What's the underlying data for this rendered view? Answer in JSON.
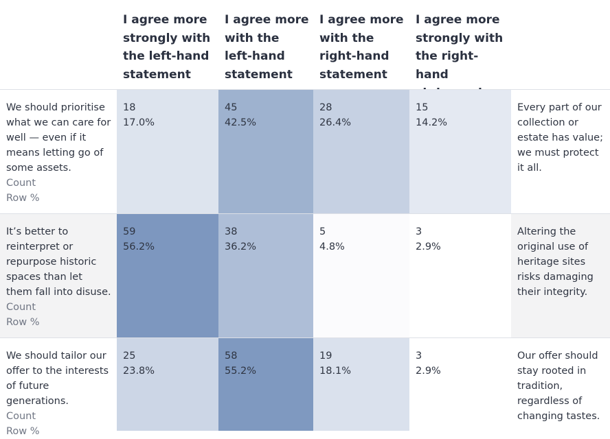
{
  "columns": [
    "I agree more strongly with the left-hand statement",
    "I agree more with the left-hand statement",
    "I agree more with the right-hand statement",
    "I agree more strongly with the right-hand statement"
  ],
  "row_labels": {
    "count": "Count",
    "row_pct": "Row %"
  },
  "rows": [
    {
      "left": "We should prioritise what we can care for well — even if it means letting go of some assets.",
      "right": "Every part of our collection or estate has value; we must protect it all.",
      "counts": [
        "18",
        "45",
        "28",
        "15"
      ],
      "pcts": [
        "17.0%",
        "42.5%",
        "26.4%",
        "14.2%"
      ]
    },
    {
      "left": "It’s better to reinterpret or repurpose historic spaces than let them fall into disuse.",
      "right": "Altering the original use of heritage sites risks damaging their integrity.",
      "counts": [
        "59",
        "38",
        "5",
        "3"
      ],
      "pcts": [
        "56.2%",
        "36.2%",
        "4.8%",
        "2.9%"
      ]
    },
    {
      "left": "We should tailor our offer to the interests of future generations.",
      "right": "Our offer should stay rooted in tradition, regardless of changing tastes.",
      "counts": [
        "25",
        "58",
        "19",
        "3"
      ],
      "pcts": [
        "23.8%",
        "55.2%",
        "18.1%",
        "2.9%"
      ]
    }
  ],
  "colors": {
    "scale_max": "#7d97bf",
    "scale_min": "#ffffff",
    "stripe": "#f3f3f4",
    "grid": "#dde0e6",
    "text": "#2f3542"
  },
  "chart_data": {
    "type": "heatmap",
    "x": [
      "I agree more strongly with the left-hand statement",
      "I agree more with the left-hand statement",
      "I agree more with the right-hand statement",
      "I agree more strongly with the right-hand statement"
    ],
    "y": [
      "We should prioritise what we can care for well — even if it means letting go of some assets. / Every part of our collection or estate has value; we must protect it all.",
      "It’s better to reinterpret or repurpose historic spaces than let them fall into disuse. / Altering the original use of heritage sites risks damaging their integrity.",
      "We should tailor our offer to the interests of future generations. / Our offer should stay rooted in tradition, regardless of changing tastes."
    ],
    "counts": [
      [
        18,
        45,
        28,
        15
      ],
      [
        59,
        38,
        5,
        3
      ],
      [
        25,
        58,
        19,
        3
      ]
    ],
    "row_pct": [
      [
        17.0,
        42.5,
        26.4,
        14.2
      ],
      [
        56.2,
        36.2,
        4.8,
        2.9
      ],
      [
        23.8,
        55.2,
        18.1,
        2.9
      ]
    ]
  }
}
